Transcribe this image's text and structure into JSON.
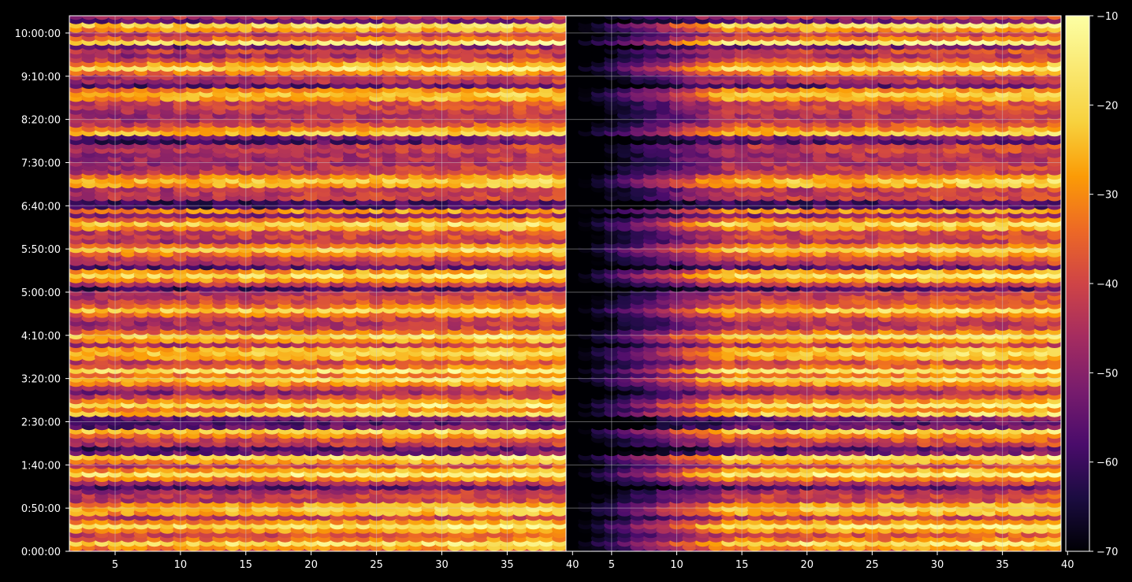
{
  "chart_data": {
    "type": "heatmap",
    "title": "",
    "panels": [
      {
        "name": "",
        "xlim": [
          1.5,
          39.5
        ],
        "x_ticks": [
          5,
          10,
          15,
          20,
          25,
          30,
          35,
          40
        ],
        "x_tick_labels": [
          "5",
          "10",
          "15",
          "20",
          "25",
          "30",
          "35",
          "40"
        ],
        "ylabel_ticks": [
          "0:00:00",
          "0:50:00",
          "1:40:00",
          "2:30:00",
          "3:20:00",
          "4:10:00",
          "5:00:00",
          "5:50:00",
          "6:40:00",
          "7:30:00",
          "8:20:00",
          "9:10:00",
          "10:00:00"
        ],
        "baseline": "high"
      },
      {
        "name": "",
        "xlim": [
          1.5,
          39.5
        ],
        "x_ticks": [
          5,
          10,
          15,
          20,
          25,
          30,
          35,
          40
        ],
        "x_tick_labels": [
          "5",
          "10",
          "15",
          "20",
          "25",
          "30",
          "35",
          "40"
        ],
        "baseline": "low_left_ramp"
      }
    ],
    "y_axis": {
      "unit": "time (h:mm:ss)",
      "tick_seconds": [
        0,
        3000,
        6000,
        9000,
        12000,
        15000,
        18000,
        21000,
        24000,
        27000,
        30000,
        33000,
        36000
      ],
      "ylim_seconds": [
        0,
        37200
      ]
    },
    "colorbar": {
      "colormap": "inferno",
      "range": [
        -70,
        -10
      ],
      "ticks": [
        -10,
        -20,
        -30,
        -40,
        -50,
        -60,
        -70
      ],
      "tick_labels": [
        "−10",
        "−20",
        "−30",
        "−40",
        "−50",
        "−60",
        "−70"
      ]
    },
    "grid": true,
    "colors": {
      "background": "#000000",
      "axes": "#ffffff",
      "grid": "#cccccc"
    },
    "bright_rows_seconds": [
      600,
      1800,
      3000,
      5400,
      6600,
      8400,
      9600,
      10200,
      12000,
      12600,
      13800,
      15000,
      16800,
      19200,
      21000,
      22800,
      23400,
      25800,
      29100,
      31800,
      33600,
      35400,
      36600
    ]
  }
}
